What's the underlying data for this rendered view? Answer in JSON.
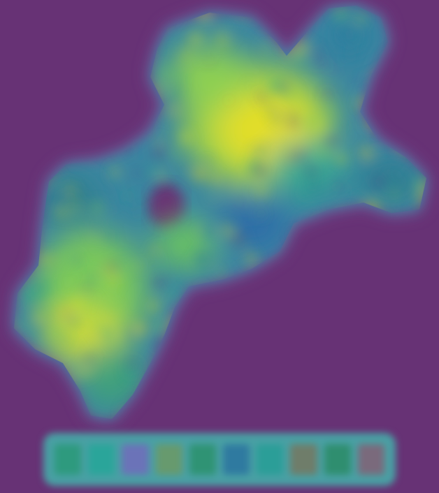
{
  "image": {
    "description_kind": "blurred density heatmap shaped like a landmass with a row of color swatches beneath",
    "background_color": "#673275",
    "palette": {
      "low": "#4c3f88",
      "mid_low": "#2f7d95",
      "mid": "#25a88a",
      "mid_high": "#7cc95a",
      "high": "#d9df2a",
      "peak": "#f0d02a"
    },
    "swatches": [
      {
        "color": "#2e9a7e"
      },
      {
        "color": "#2aa59a"
      },
      {
        "color": "#6b73b8"
      },
      {
        "color": "#679a6e"
      },
      {
        "color": "#2f9374"
      },
      {
        "color": "#2f7aa0"
      },
      {
        "color": "#2b9e98"
      },
      {
        "color": "#6f7d6a"
      },
      {
        "color": "#2f8e6f"
      },
      {
        "color": "#7a6a7c"
      }
    ]
  }
}
